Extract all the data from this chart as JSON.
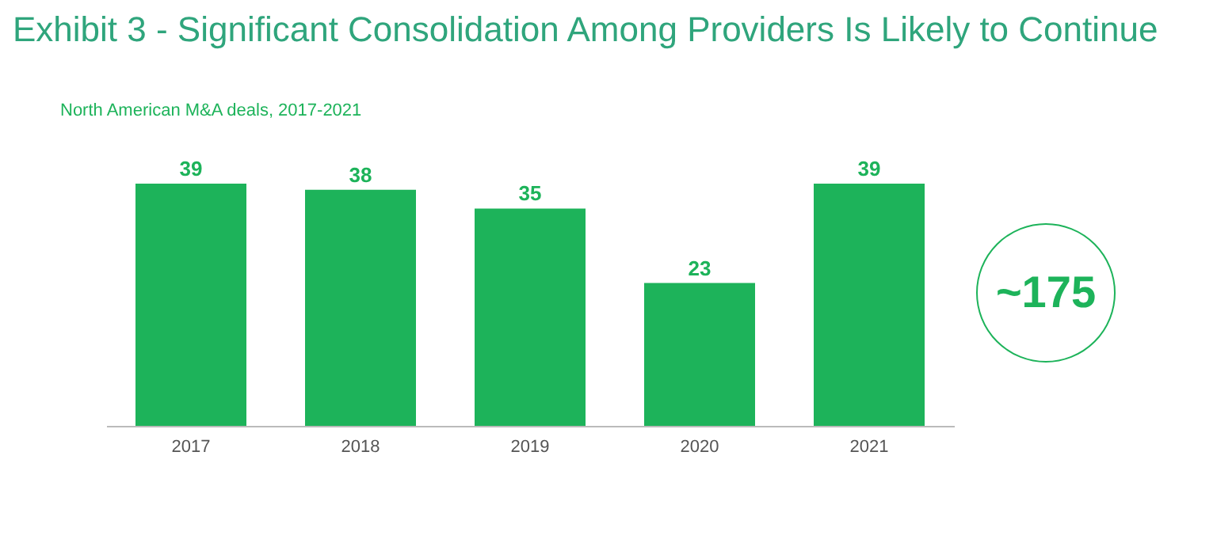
{
  "chart_data": {
    "type": "bar",
    "title": "Exhibit 3 - Significant Consolidation Among Providers Is Likely to Continue",
    "subtitle": "North American M&A deals, 2017-2021",
    "categories": [
      "2017",
      "2018",
      "2019",
      "2020",
      "2021"
    ],
    "values": [
      39,
      38,
      35,
      23,
      39
    ],
    "color": "#1db35a",
    "data_labels": true,
    "grid": false,
    "annotations": [
      "~175"
    ]
  }
}
